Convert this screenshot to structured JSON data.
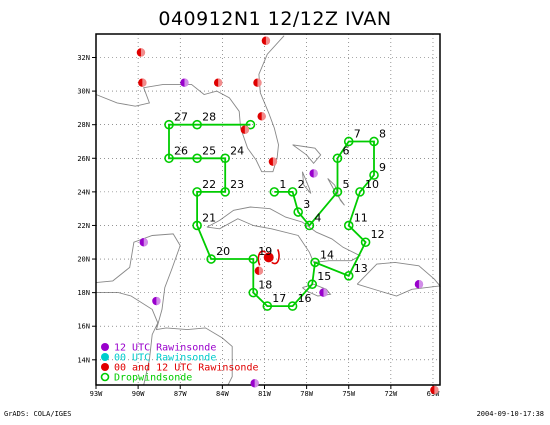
{
  "title": "040912N1  12/12Z IVAN",
  "footer_left": "GrADS: COLA/IGES",
  "footer_right": "2004-09-10-17:38",
  "colors": {
    "track": "#00cc00",
    "rawin_12": "#9900cc",
    "rawin_00": "#00cccc",
    "rawin_00_12": "#e00000",
    "land": "#888888",
    "grid": "#555555"
  },
  "map": {
    "lon_ticks": [
      "93W",
      "90W",
      "87W",
      "84W",
      "81W",
      "78W",
      "75W",
      "72W",
      "69W"
    ],
    "lat_ticks": [
      "14N",
      "16N",
      "18N",
      "20N",
      "22N",
      "24N",
      "26N",
      "28N",
      "30N",
      "32N"
    ]
  },
  "legend": [
    {
      "label": "12 UTC Rawinsonde",
      "color_key": "rawin_12"
    },
    {
      "label": "00 UTC Rawinsonde",
      "color_key": "rawin_00"
    },
    {
      "label": "00 and 12 UTC Rawinsonde",
      "color_key": "rawin_00_12"
    },
    {
      "label": "Dropwindsonde",
      "color_key": "track"
    }
  ],
  "dropwindsondes": [
    {
      "label": "1",
      "lon": -80.3,
      "lat": 24.0
    },
    {
      "label": "2",
      "lon": -79.0,
      "lat": 24.0
    },
    {
      "label": "3",
      "lon": -78.6,
      "lat": 22.8
    },
    {
      "label": "4",
      "lon": -77.8,
      "lat": 22.0
    },
    {
      "label": "5",
      "lon": -75.8,
      "lat": 24.0
    },
    {
      "label": "6",
      "lon": -75.8,
      "lat": 26.0
    },
    {
      "label": "7",
      "lon": -75.0,
      "lat": 27.0
    },
    {
      "label": "8",
      "lon": -73.2,
      "lat": 27.0
    },
    {
      "label": "9",
      "lon": -73.2,
      "lat": 25.0
    },
    {
      "label": "10",
      "lon": -74.2,
      "lat": 24.0
    },
    {
      "label": "11",
      "lon": -75.0,
      "lat": 22.0
    },
    {
      "label": "12",
      "lon": -73.8,
      "lat": 21.0
    },
    {
      "label": "13",
      "lon": -75.0,
      "lat": 19.0
    },
    {
      "label": "14",
      "lon": -77.4,
      "lat": 19.8
    },
    {
      "label": "15",
      "lon": -77.6,
      "lat": 18.5
    },
    {
      "label": "16",
      "lon": -79.0,
      "lat": 17.2
    },
    {
      "label": "17",
      "lon": -80.8,
      "lat": 17.2
    },
    {
      "label": "18",
      "lon": -81.8,
      "lat": 18.0
    },
    {
      "label": "19",
      "lon": -81.8,
      "lat": 20.0
    },
    {
      "label": "20",
      "lon": -84.8,
      "lat": 20.0
    },
    {
      "label": "21",
      "lon": -85.8,
      "lat": 22.0
    },
    {
      "label": "22",
      "lon": -85.8,
      "lat": 24.0
    },
    {
      "label": "23",
      "lon": -83.8,
      "lat": 24.0
    },
    {
      "label": "24",
      "lon": -83.8,
      "lat": 26.0
    },
    {
      "label": "25",
      "lon": -85.8,
      "lat": 26.0
    },
    {
      "label": "26",
      "lon": -87.8,
      "lat": 26.0
    },
    {
      "label": "27",
      "lon": -87.8,
      "lat": 28.0
    },
    {
      "label": "28",
      "lon": -85.8,
      "lat": 28.0
    },
    {
      "label": "",
      "lon": -82.0,
      "lat": 28.0
    }
  ],
  "rawinsondes": [
    {
      "lon": -89.8,
      "lat": 32.3,
      "type": "rawin_00_12"
    },
    {
      "lon": -89.7,
      "lat": 30.5,
      "type": "rawin_00_12"
    },
    {
      "lon": -86.7,
      "lat": 30.5,
      "type": "rawin_12"
    },
    {
      "lon": -84.3,
      "lat": 30.5,
      "type": "rawin_00_12"
    },
    {
      "lon": -81.5,
      "lat": 30.5,
      "type": "rawin_00_12"
    },
    {
      "lon": -80.9,
      "lat": 33.0,
      "type": "rawin_00_12"
    },
    {
      "lon": -81.2,
      "lat": 28.5,
      "type": "rawin_00_12"
    },
    {
      "lon": -82.4,
      "lat": 27.7,
      "type": "rawin_00_12"
    },
    {
      "lon": -80.4,
      "lat": 25.8,
      "type": "rawin_00_12"
    },
    {
      "lon": -77.5,
      "lat": 25.1,
      "type": "rawin_12"
    },
    {
      "lon": -81.4,
      "lat": 19.3,
      "type": "rawin_00_12"
    },
    {
      "lon": -76.8,
      "lat": 18.0,
      "type": "rawin_12"
    },
    {
      "lon": -89.6,
      "lat": 21.0,
      "type": "rawin_12"
    },
    {
      "lon": -88.7,
      "lat": 17.5,
      "type": "rawin_12"
    },
    {
      "lon": -70.0,
      "lat": 18.5,
      "type": "rawin_12"
    },
    {
      "lon": -81.7,
      "lat": 12.6,
      "type": "rawin_12"
    },
    {
      "lon": -68.9,
      "lat": 12.2,
      "type": "rawin_00_12"
    }
  ]
}
